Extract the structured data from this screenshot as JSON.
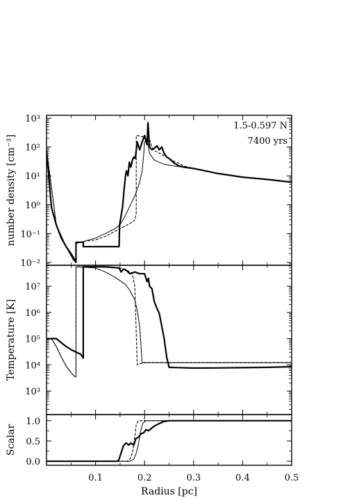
{
  "chart_data": [
    {
      "type": "line",
      "ylabel": "number density [cm⁻³]",
      "ylim_log10": [
        -2.1,
        3.1
      ],
      "yscale": "log",
      "xlim": [
        0.0,
        0.5
      ],
      "ytick_labels": [
        "10⁻²",
        "10⁻¹",
        "10⁰",
        "10¹",
        "10²",
        "10³"
      ],
      "annotations": [
        "1.5-0.597 N",
        "7400 yrs"
      ],
      "series": [
        {
          "style": "thick",
          "x": [
            0.0,
            0.01,
            0.02,
            0.03,
            0.04,
            0.05,
            0.058,
            0.06,
            0.06,
            0.075,
            0.075,
            0.148,
            0.149,
            0.155,
            0.158,
            0.161,
            0.163,
            0.166,
            0.169,
            0.172,
            0.175,
            0.178,
            0.181,
            0.185,
            0.19,
            0.195,
            0.2,
            0.205,
            0.207,
            0.21,
            0.215,
            0.22,
            0.225,
            0.23,
            0.235,
            0.24,
            0.245,
            0.25,
            0.26,
            0.27,
            0.28,
            0.3,
            0.35,
            0.4,
            0.45,
            0.5
          ],
          "y": [
            80,
            0.8,
            0.2,
            0.07,
            0.035,
            0.02,
            0.012,
            0.01,
            0.05,
            0.05,
            0.035,
            0.035,
            0.2,
            0.8,
            3,
            10,
            15,
            10,
            30,
            20,
            35,
            45,
            40,
            150,
            80,
            150,
            250,
            120,
            700,
            100,
            80,
            90,
            110,
            80,
            100,
            60,
            45,
            40,
            28,
            22,
            20,
            18,
            12,
            9,
            7.5,
            6
          ]
        },
        {
          "style": "dashed",
          "x": [
            0.0,
            0.02,
            0.04,
            0.055,
            0.06,
            0.06,
            0.07,
            0.08,
            0.1,
            0.12,
            0.14,
            0.16,
            0.175,
            0.18,
            0.183,
            0.183,
            0.19,
            0.2,
            0.205,
            0.21,
            0.215,
            0.22,
            0.24,
            0.26,
            0.27,
            0.28,
            0.3,
            0.35,
            0.4,
            0.45,
            0.5
          ],
          "y": [
            80,
            0.2,
            0.035,
            0.012,
            0.01,
            0.05,
            0.05,
            0.055,
            0.06,
            0.08,
            0.12,
            0.18,
            0.25,
            0.3,
            0.5,
            250,
            240,
            220,
            150,
            180,
            100,
            75,
            50,
            32,
            27,
            22,
            18,
            12,
            9,
            7.5,
            6
          ]
        },
        {
          "style": "thin",
          "x": [
            0.0,
            0.02,
            0.04,
            0.055,
            0.06,
            0.06,
            0.07,
            0.1,
            0.12,
            0.14,
            0.15,
            0.16,
            0.17,
            0.18,
            0.19,
            0.195,
            0.198,
            0.2,
            0.205,
            0.21,
            0.22,
            0.24,
            0.26,
            0.28,
            0.3,
            0.35,
            0.4,
            0.45,
            0.5
          ],
          "y": [
            80,
            0.2,
            0.035,
            0.012,
            0.01,
            0.045,
            0.05,
            0.07,
            0.1,
            0.15,
            0.2,
            0.4,
            0.9,
            2,
            6,
            15,
            50,
            150,
            200,
            60,
            35,
            25,
            22,
            20,
            18,
            12,
            9,
            7.5,
            6
          ]
        }
      ]
    },
    {
      "type": "line",
      "ylabel": "Temperature [K]",
      "ylim_log10": [
        2.1,
        7.8
      ],
      "yscale": "log",
      "xlim": [
        0.0,
        0.5
      ],
      "ytick_labels": [
        "10³",
        "10⁴",
        "10⁵",
        "10⁶",
        "10⁷"
      ],
      "series": [
        {
          "style": "thick",
          "x": [
            0.0,
            0.005,
            0.01,
            0.02,
            0.03,
            0.04,
            0.05,
            0.07,
            0.075,
            0.075,
            0.12,
            0.148,
            0.152,
            0.157,
            0.163,
            0.17,
            0.18,
            0.19,
            0.2,
            0.205,
            0.208,
            0.21,
            0.215,
            0.22,
            0.225,
            0.23,
            0.235,
            0.24,
            0.245,
            0.25,
            0.3,
            0.35,
            0.4,
            0.45,
            0.5
          ],
          "y": [
            100000,
            100000,
            100000,
            100000,
            70000,
            50000,
            38000,
            25000,
            18000,
            55000000,
            55000000,
            50000000,
            35000000,
            45000000,
            40000000,
            30000000,
            35000000,
            30000000,
            30000000,
            15000000,
            20000000,
            10000000,
            8000000,
            2500000,
            1500000,
            900000,
            300000,
            100000,
            20000,
            8000,
            7500,
            7600,
            7800,
            8000,
            8500
          ]
        },
        {
          "style": "dashed",
          "x": [
            0.0,
            0.01,
            0.02,
            0.03,
            0.04,
            0.05,
            0.058,
            0.06,
            0.06,
            0.1,
            0.14,
            0.16,
            0.17,
            0.175,
            0.18,
            0.185,
            0.19,
            0.2,
            0.25,
            0.3,
            0.35,
            0.4,
            0.45,
            0.5
          ],
          "y": [
            100000,
            100000,
            50000,
            20000,
            9000,
            5000,
            3500,
            3500,
            55000000,
            55000000,
            50000000,
            45000000,
            35000000,
            30000000,
            10000000,
            10000,
            11000,
            12000,
            12000,
            12000,
            12000,
            12000,
            12000,
            12000
          ]
        },
        {
          "style": "thin",
          "x": [
            0.0,
            0.01,
            0.02,
            0.03,
            0.04,
            0.05,
            0.058,
            0.06,
            0.06,
            0.1,
            0.12,
            0.14,
            0.16,
            0.17,
            0.18,
            0.185,
            0.19,
            0.195,
            0.2,
            0.25,
            0.3,
            0.35,
            0.4,
            0.45,
            0.5
          ],
          "y": [
            100000,
            100000,
            50000,
            20000,
            9000,
            5000,
            3500,
            3500,
            55000000,
            50000000,
            35000000,
            22000000,
            12000000,
            7000000,
            3000000,
            1200000,
            300000,
            12000,
            12000,
            12000,
            12000,
            12000,
            12000,
            12000,
            12000
          ]
        }
      ]
    },
    {
      "type": "line",
      "ylabel": "Scalar",
      "xlabel": "Radius [pc]",
      "ylim": [
        -0.1,
        1.15
      ],
      "xlim": [
        0.0,
        0.5
      ],
      "ytick_labels": [
        "0.0",
        "0.5",
        "1.0"
      ],
      "xtick_labels": [
        "0.1",
        "0.2",
        "0.3",
        "0.4",
        "0.5"
      ],
      "series": [
        {
          "style": "thick",
          "x": [
            0.0,
            0.145,
            0.148,
            0.152,
            0.157,
            0.162,
            0.168,
            0.172,
            0.178,
            0.182,
            0.188,
            0.193,
            0.198,
            0.203,
            0.208,
            0.213,
            0.218,
            0.222,
            0.23,
            0.24,
            0.25,
            0.3,
            0.35,
            0.4,
            0.45,
            0.5
          ],
          "y": [
            0.0,
            0.0,
            0.05,
            0.2,
            0.38,
            0.45,
            0.4,
            0.45,
            0.4,
            0.55,
            0.6,
            0.68,
            0.7,
            0.78,
            0.75,
            0.8,
            0.85,
            0.88,
            0.93,
            0.98,
            1.0,
            1.0,
            1.0,
            1.0,
            1.0,
            1.0
          ]
        },
        {
          "style": "dashed",
          "x": [
            0.0,
            0.165,
            0.17,
            0.175,
            0.18,
            0.183,
            0.186,
            0.19,
            0.2,
            0.3,
            0.5
          ],
          "y": [
            0.0,
            0.0,
            0.05,
            0.2,
            0.6,
            0.9,
            0.98,
            1.0,
            1.0,
            1.0,
            1.0
          ]
        },
        {
          "style": "thin",
          "x": [
            0.0,
            0.17,
            0.178,
            0.183,
            0.188,
            0.192,
            0.196,
            0.2,
            0.205,
            0.3,
            0.5
          ],
          "y": [
            0.0,
            0.0,
            0.05,
            0.2,
            0.45,
            0.75,
            0.92,
            0.98,
            1.0,
            1.0,
            1.0
          ]
        }
      ]
    }
  ]
}
